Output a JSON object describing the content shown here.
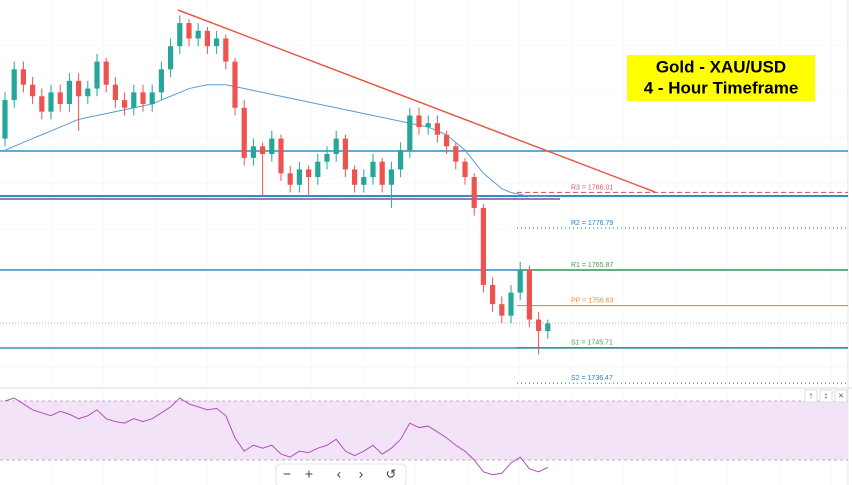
{
  "chart_data": {
    "type": "candlestick",
    "title": "Gold - XAU/USD",
    "subtitle": "4 - Hour Timeframe",
    "ylim": [
      1736,
      1836
    ],
    "up_color": "#26a69a",
    "down_color": "#ef5350",
    "ohlc": [
      [
        1800,
        1812,
        1798,
        1810
      ],
      [
        1810,
        1820,
        1808,
        1818
      ],
      [
        1818,
        1820,
        1812,
        1814
      ],
      [
        1814,
        1816,
        1809,
        1811
      ],
      [
        1811,
        1813,
        1805,
        1807
      ],
      [
        1807,
        1814,
        1805,
        1812
      ],
      [
        1812,
        1814,
        1807,
        1809
      ],
      [
        1809,
        1817,
        1807,
        1815
      ],
      [
        1815,
        1817,
        1802,
        1811
      ],
      [
        1811,
        1815,
        1809,
        1813
      ],
      [
        1813,
        1822,
        1811,
        1820
      ],
      [
        1820,
        1821,
        1812,
        1814
      ],
      [
        1814,
        1816,
        1808,
        1810
      ],
      [
        1810,
        1812,
        1806,
        1808
      ],
      [
        1808,
        1814,
        1806,
        1812
      ],
      [
        1812,
        1814,
        1807,
        1809
      ],
      [
        1809,
        1814,
        1807,
        1812
      ],
      [
        1812,
        1820,
        1810,
        1818
      ],
      [
        1818,
        1826,
        1816,
        1824
      ],
      [
        1824,
        1832,
        1822,
        1830
      ],
      [
        1830,
        1831,
        1824,
        1826
      ],
      [
        1826,
        1830,
        1824,
        1828
      ],
      [
        1828,
        1829,
        1822,
        1824
      ],
      [
        1824,
        1828,
        1822,
        1826
      ],
      [
        1826,
        1827,
        1818,
        1820
      ],
      [
        1820,
        1821,
        1806,
        1808
      ],
      [
        1808,
        1810,
        1793,
        1795
      ],
      [
        1795,
        1800,
        1793,
        1798
      ],
      [
        1798,
        1799,
        1785,
        1796
      ],
      [
        1796,
        1802,
        1794,
        1800
      ],
      [
        1800,
        1801,
        1789,
        1791
      ],
      [
        1791,
        1793,
        1786,
        1788
      ],
      [
        1788,
        1794,
        1786,
        1792
      ],
      [
        1792,
        1793,
        1785,
        1790
      ],
      [
        1790,
        1796,
        1788,
        1794
      ],
      [
        1794,
        1798,
        1792,
        1796
      ],
      [
        1796,
        1802,
        1794,
        1800
      ],
      [
        1800,
        1801,
        1790,
        1792
      ],
      [
        1792,
        1793,
        1786,
        1788
      ],
      [
        1788,
        1792,
        1786,
        1790
      ],
      [
        1790,
        1796,
        1788,
        1794
      ],
      [
        1794,
        1795,
        1786,
        1788
      ],
      [
        1788,
        1794,
        1782,
        1792
      ],
      [
        1792,
        1799,
        1790,
        1797
      ],
      [
        1797,
        1808,
        1795,
        1806
      ],
      [
        1806,
        1808,
        1801,
        1803
      ],
      [
        1803,
        1806,
        1801,
        1804
      ],
      [
        1804,
        1806,
        1799,
        1801
      ],
      [
        1801,
        1802,
        1796,
        1798
      ],
      [
        1798,
        1799,
        1792,
        1794
      ],
      [
        1794,
        1795,
        1788,
        1790
      ],
      [
        1790,
        1791,
        1780,
        1782
      ],
      [
        1782,
        1783,
        1760,
        1762
      ],
      [
        1762,
        1764,
        1755,
        1757
      ],
      [
        1757,
        1759,
        1752,
        1754
      ],
      [
        1754,
        1762,
        1752,
        1760
      ],
      [
        1760,
        1768,
        1758,
        1766
      ],
      [
        1766,
        1767,
        1751,
        1753
      ],
      [
        1753,
        1755,
        1744,
        1750
      ],
      [
        1750,
        1753,
        1748,
        1752
      ]
    ],
    "ma": [
      1797,
      1798,
      1799,
      1800,
      1801,
      1802,
      1803,
      1804,
      1805,
      1805.5,
      1806,
      1806.5,
      1807,
      1807.5,
      1808,
      1808.5,
      1809,
      1810,
      1811,
      1812,
      1813,
      1813.5,
      1814,
      1814,
      1814,
      1813.5,
      1813,
      1812.5,
      1812,
      1811.5,
      1811,
      1810.5,
      1810,
      1809.5,
      1809,
      1808.5,
      1808,
      1807.5,
      1807,
      1806.5,
      1806,
      1805.5,
      1805,
      1804.5,
      1804,
      1803.5,
      1803,
      1802,
      1801,
      1799,
      1797,
      1794,
      1791,
      1789,
      1787,
      1786,
      1785.5,
      1785,
      1785,
      1785
    ],
    "ma_color": "#5b9bd5",
    "rsi": [
      70,
      72,
      68,
      64,
      62,
      60,
      63,
      61,
      58,
      60,
      64,
      58,
      56,
      55,
      58,
      56,
      58,
      62,
      66,
      72,
      68,
      66,
      64,
      65,
      60,
      45,
      36,
      40,
      38,
      40,
      34,
      32,
      36,
      35,
      38,
      40,
      44,
      36,
      33,
      36,
      40,
      34,
      38,
      44,
      55,
      52,
      53,
      49,
      45,
      40,
      36,
      30,
      22,
      20,
      21,
      28,
      32,
      24,
      22,
      25
    ],
    "rsi_color": "#b04fc0",
    "levels": [
      {
        "label": "R3 = 1786.01",
        "value": 1786.01,
        "color": "#e05a6a",
        "dash": "5,3"
      },
      {
        "label": "R2 = 1776.79",
        "value": 1776.79,
        "color": "#2f7fc1",
        "dash": "1,3"
      },
      {
        "label": "R1 = 1765.87",
        "value": 1765.87,
        "color": "#43a047",
        "dash": ""
      },
      {
        "label": "PP = 1756.63",
        "value": 1756.63,
        "color": "#f08c2a",
        "dash": ""
      },
      {
        "label": "S1 = 1745.71",
        "value": 1745.71,
        "color": "#43a047",
        "dash": ""
      },
      {
        "label": "S2 = 1736.47",
        "value": 1736.47,
        "color": "#2f7fc1",
        "dash": "1,3"
      }
    ]
  }
}
